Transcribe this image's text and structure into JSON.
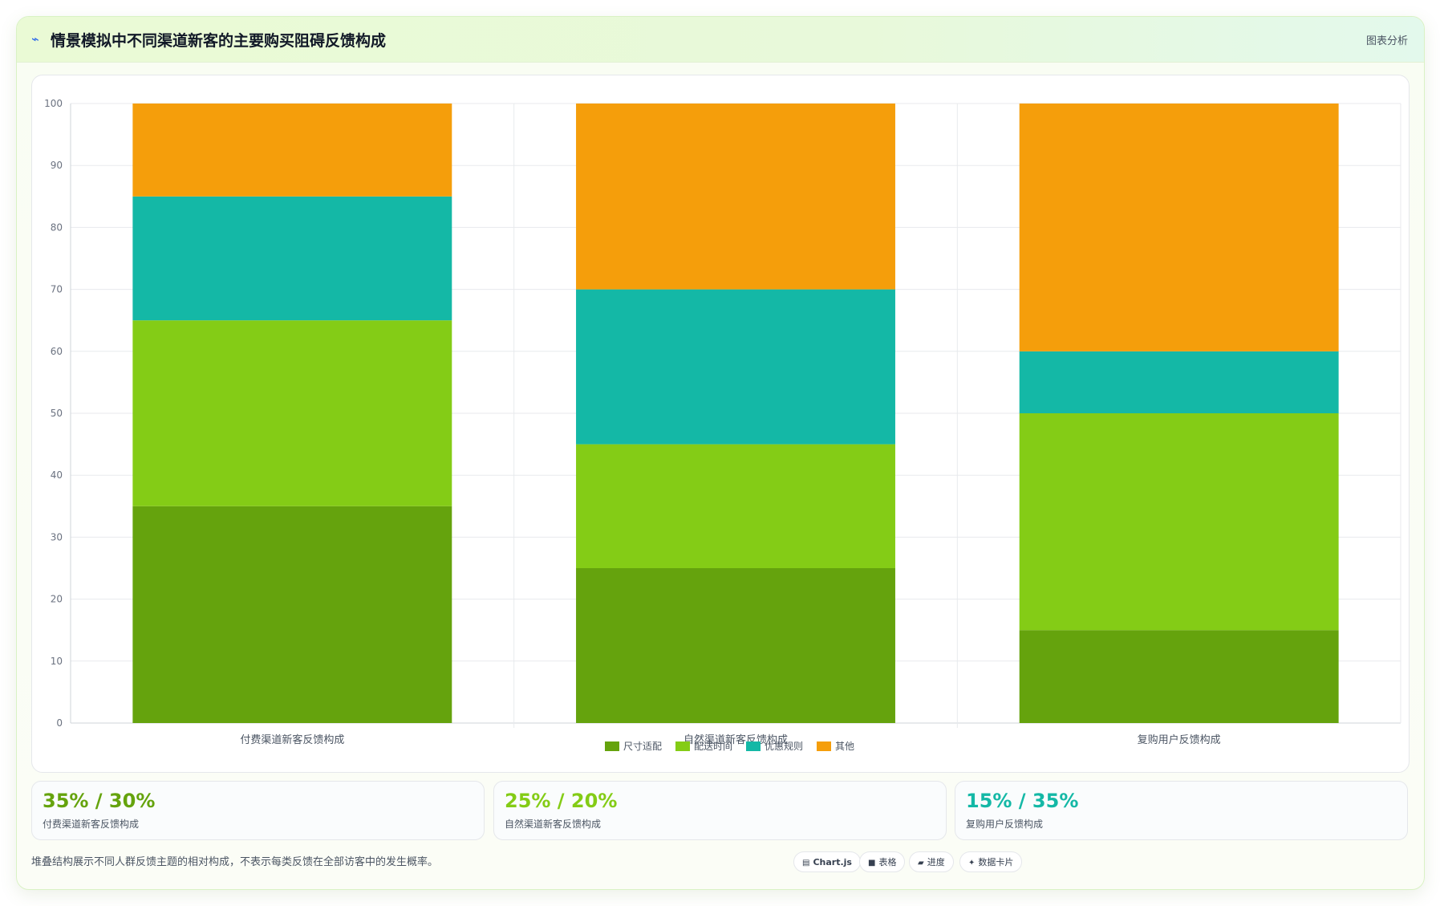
{
  "header": {
    "icon": "wave-icon",
    "title": "情景模拟中不同渠道新客的主要购买阻碍反馈构成",
    "tag": "图表分析"
  },
  "colors": {
    "size_fit": "#65a30d",
    "delivery_time": "#84cc16",
    "promo_rules": "#14b8a6",
    "other": "#f59e0b"
  },
  "chart_data": {
    "type": "bar",
    "stacked": true,
    "categories": [
      "付费渠道新客反馈构成",
      "自然渠道新客反馈构成",
      "复购用户反馈构成"
    ],
    "series": [
      {
        "name": "尺寸适配",
        "values": [
          35,
          25,
          15
        ],
        "color": "#65a30d"
      },
      {
        "name": "配送时间",
        "values": [
          30,
          20,
          35
        ],
        "color": "#84cc16"
      },
      {
        "name": "优惠规则",
        "values": [
          20,
          25,
          10
        ],
        "color": "#14b8a6"
      },
      {
        "name": "其他",
        "values": [
          15,
          30,
          40
        ],
        "color": "#f59e0b"
      }
    ],
    "ylim": [
      0,
      100
    ],
    "yticks": [
      0,
      10,
      20,
      30,
      40,
      50,
      60,
      70,
      80,
      90,
      100
    ],
    "grid": true,
    "legend": "bottom-center"
  },
  "kpis": [
    {
      "value": "35% / 30%",
      "label": "付费渠道新客反馈构成",
      "color": "#65a30d"
    },
    {
      "value": "25% / 20%",
      "label": "自然渠道新客反馈构成",
      "color": "#84cc16"
    },
    {
      "value": "15% / 35%",
      "label": "复购用户反馈构成",
      "color": "#14b8a6"
    }
  ],
  "footer": {
    "note": "堆叠结构展示不同人群反馈主题的相对构成，不表示每类反馈在全部访客中的发生概率。"
  },
  "chips": [
    {
      "icon": "chart-icon",
      "glyph": "▤",
      "label": "Chart.js",
      "bold": true
    },
    {
      "icon": "table-icon",
      "glyph": "■",
      "label": "表格",
      "bold": false
    },
    {
      "icon": "progress-icon",
      "glyph": "▰",
      "label": "进度",
      "bold": false
    },
    {
      "icon": "sparkle-icon",
      "glyph": "✦",
      "label": "数据卡片",
      "bold": false
    }
  ]
}
